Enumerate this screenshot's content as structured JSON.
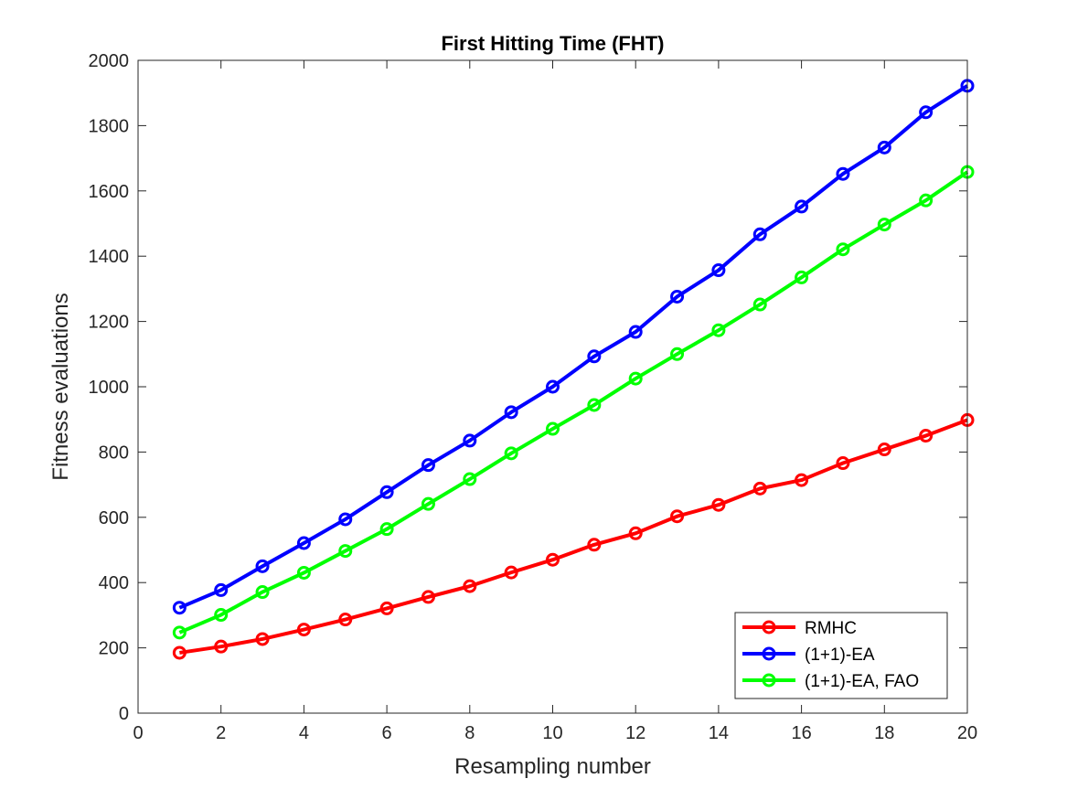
{
  "chart_data": {
    "type": "line",
    "title": "First Hitting Time (FHT)",
    "xlabel": "Resampling number",
    "ylabel": "Fitness evaluations",
    "xlim": [
      0,
      20
    ],
    "ylim": [
      0,
      2000
    ],
    "xticks": [
      0,
      2,
      4,
      6,
      8,
      10,
      12,
      14,
      16,
      18,
      20
    ],
    "yticks": [
      0,
      200,
      400,
      600,
      800,
      1000,
      1200,
      1400,
      1600,
      1800,
      2000
    ],
    "grid": false,
    "legend_position": "bottom-right",
    "x": [
      1,
      2,
      3,
      4,
      5,
      6,
      7,
      8,
      9,
      10,
      11,
      12,
      13,
      14,
      15,
      16,
      17,
      18,
      19,
      20
    ],
    "series": [
      {
        "name": "RMHC",
        "color": "#ff0000",
        "marker": "circle",
        "values": [
          185,
          204,
          227,
          256,
          287,
          321,
          356,
          389,
          431,
          470,
          516,
          551,
          603,
          638,
          688,
          714,
          766,
          808,
          850,
          898
        ]
      },
      {
        "name": "(1+1)-EA",
        "color": "#0000ff",
        "marker": "circle",
        "values": [
          323,
          377,
          450,
          521,
          594,
          677,
          760,
          835,
          922,
          1000,
          1093,
          1168,
          1276,
          1357,
          1467,
          1552,
          1652,
          1733,
          1841,
          1922
        ]
      },
      {
        "name": "(1+1)-EA, FAO",
        "color": "#00ff00",
        "marker": "circle",
        "values": [
          247,
          301,
          371,
          430,
          497,
          564,
          641,
          717,
          796,
          871,
          944,
          1025,
          1100,
          1173,
          1252,
          1335,
          1421,
          1497,
          1571,
          1658
        ]
      }
    ]
  }
}
